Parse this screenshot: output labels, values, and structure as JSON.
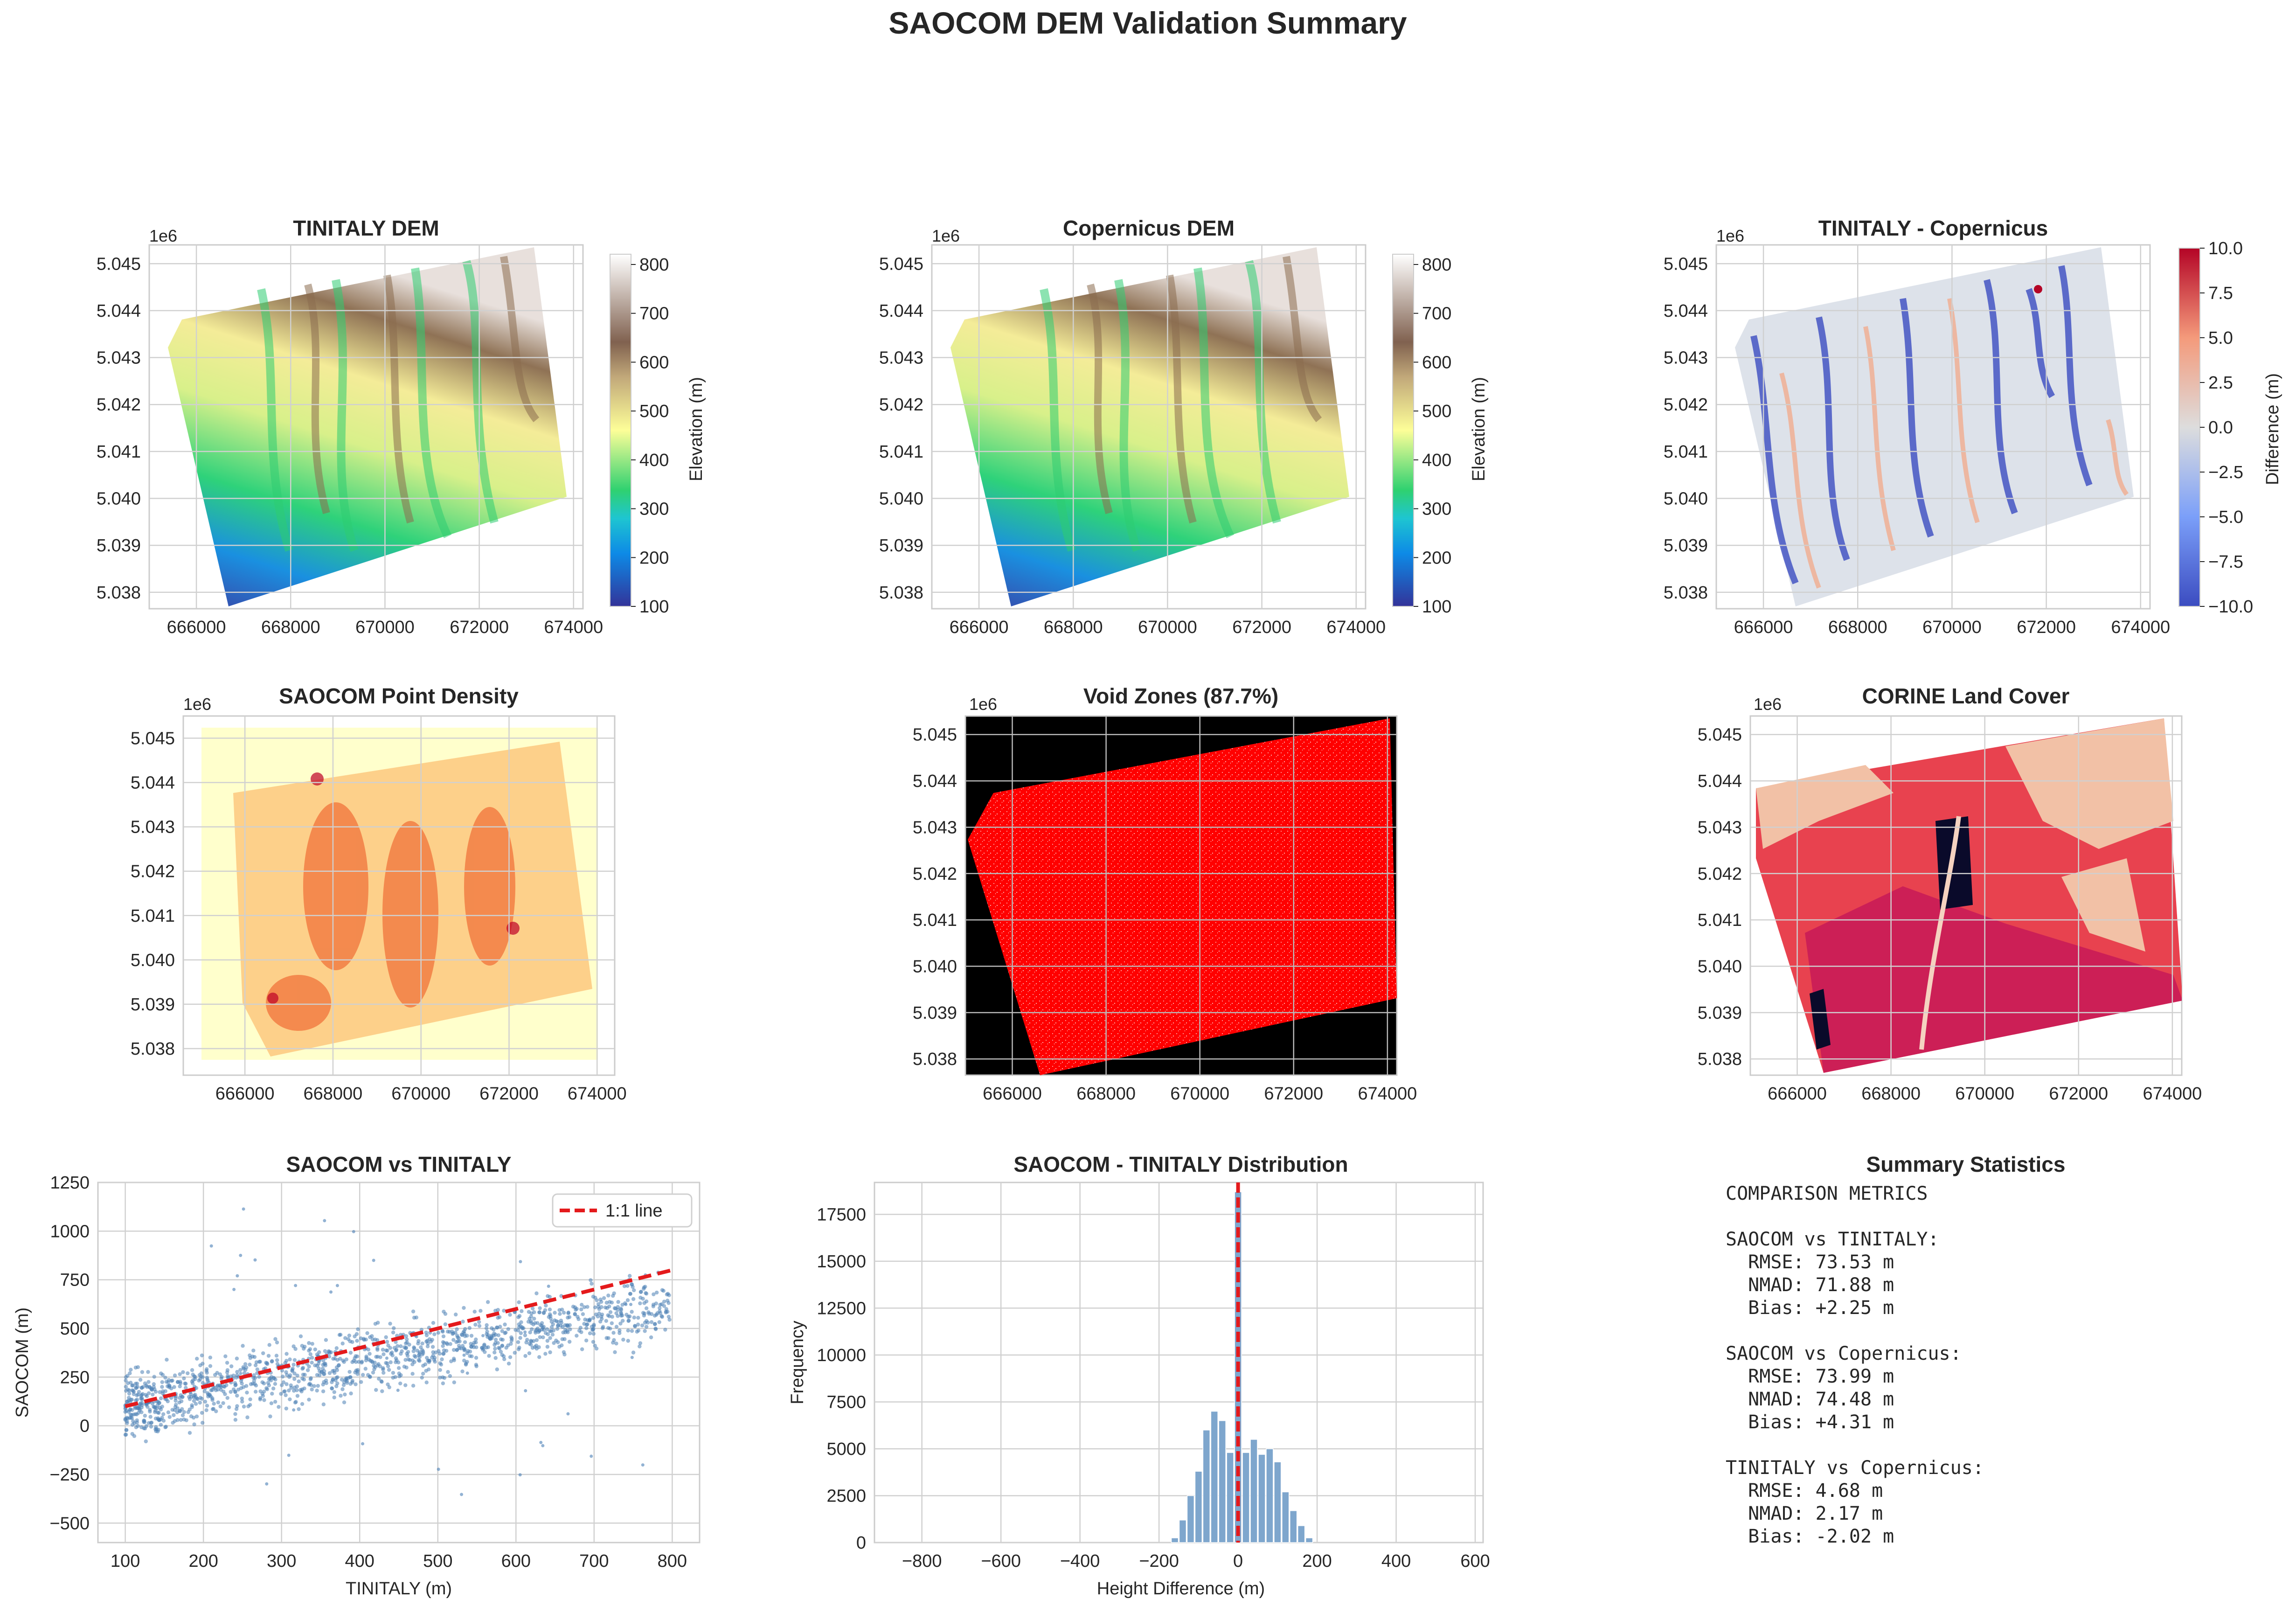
{
  "figure_title": "SAOCOM DEM Validation Summary",
  "common": {
    "offset_label": "1e6",
    "easting_ticks": [
      "666000",
      "668000",
      "670000",
      "672000",
      "674000"
    ],
    "northing_ticks": [
      "5.038",
      "5.039",
      "5.040",
      "5.041",
      "5.042",
      "5.043",
      "5.044",
      "5.045"
    ]
  },
  "colors": {
    "scatter_points": "#4a7fb5",
    "one_to_one_line": "#e41a1c",
    "hist_bars": "#7ea6cd",
    "void": "#ff0000",
    "void_background": "#000000",
    "grid": "#d0d0d0"
  },
  "panels": {
    "tinitaly_dem": {
      "title": "TINITALY DEM",
      "colorbar_label": "Elevation (m)",
      "colorbar_ticks": [
        "100",
        "200",
        "300",
        "400",
        "500",
        "600",
        "700",
        "800"
      ],
      "colormap": "terrain",
      "range": [
        100,
        820
      ]
    },
    "copernicus_dem": {
      "title": "Copernicus DEM",
      "colorbar_label": "Elevation (m)",
      "colorbar_ticks": [
        "100",
        "200",
        "300",
        "400",
        "500",
        "600",
        "700",
        "800"
      ],
      "colormap": "terrain",
      "range": [
        100,
        820
      ]
    },
    "difference": {
      "title": "TINITALY - Copernicus",
      "colorbar_label": "Difference (m)",
      "colorbar_ticks": [
        "−10.0",
        "−7.5",
        "−5.0",
        "−2.5",
        "0.0",
        "2.5",
        "5.0",
        "7.5",
        "10.0"
      ],
      "colormap": "coolwarm",
      "range": [
        -10,
        10
      ]
    },
    "density": {
      "title": "SAOCOM Point Density",
      "colormap": "YlOrRd"
    },
    "void": {
      "title": "Void Zones (87.7%)"
    },
    "corine": {
      "title": "CORINE Land Cover"
    },
    "scatter": {
      "title": "SAOCOM vs TINITALY",
      "xlabel": "TINITALY (m)",
      "ylabel": "SAOCOM (m)",
      "xticks": [
        "100",
        "200",
        "300",
        "400",
        "500",
        "600",
        "700",
        "800"
      ],
      "yticks": [
        "−500",
        "−250",
        "0",
        "250",
        "500",
        "750",
        "1000",
        "1250"
      ],
      "legend_label": "1:1 line"
    },
    "histogram": {
      "title": "SAOCOM - TINITALY Distribution",
      "xlabel": "Height Difference (m)",
      "ylabel": "Frequency",
      "xticks": [
        "−800",
        "−600",
        "−400",
        "−200",
        "0",
        "200",
        "400",
        "600"
      ],
      "yticks": [
        "0",
        "2500",
        "5000",
        "7500",
        "10000",
        "12500",
        "15000",
        "17500"
      ]
    },
    "summary": {
      "title": "Summary Statistics",
      "lines": [
        "COMPARISON METRICS",
        "",
        "SAOCOM vs TINITALY:",
        "  RMSE: 73.53 m",
        "  NMAD: 71.88 m",
        "  Bias: +2.25 m",
        "",
        "SAOCOM vs Copernicus:",
        "  RMSE: 73.99 m",
        "  NMAD: 74.48 m",
        "  Bias: +4.31 m",
        "",
        "TINITALY vs Copernicus:",
        "  RMSE: 4.68 m",
        "  NMAD: 2.17 m",
        "  Bias: -2.02 m"
      ]
    }
  },
  "chart_data": [
    {
      "type": "heatmap",
      "title": "TINITALY DEM",
      "xlim": [
        665000,
        674200
      ],
      "ylim": [
        5037650,
        5045400
      ],
      "colorbar": {
        "label": "Elevation (m)",
        "range": [
          100,
          820
        ]
      }
    },
    {
      "type": "heatmap",
      "title": "Copernicus DEM",
      "xlim": [
        665000,
        674200
      ],
      "ylim": [
        5037650,
        5045400
      ],
      "colorbar": {
        "label": "Elevation (m)",
        "range": [
          100,
          820
        ]
      }
    },
    {
      "type": "heatmap",
      "title": "TINITALY - Copernicus",
      "xlim": [
        665000,
        674200
      ],
      "ylim": [
        5037650,
        5045400
      ],
      "colorbar": {
        "label": "Difference (m)",
        "range": [
          -10,
          10
        ]
      }
    },
    {
      "type": "heatmap",
      "title": "SAOCOM Point Density",
      "xlim": [
        664600,
        674400
      ],
      "ylim": [
        5037400,
        5045500
      ]
    },
    {
      "type": "heatmap",
      "title": "Void Zones (87.7%)",
      "xlim": [
        665000,
        674200
      ],
      "ylim": [
        5037650,
        5045400
      ],
      "void_percent": 87.7
    },
    {
      "type": "heatmap",
      "title": "CORINE Land Cover",
      "xlim": [
        665000,
        674200
      ],
      "ylim": [
        5037650,
        5045400
      ]
    },
    {
      "type": "scatter",
      "title": "SAOCOM vs TINITALY",
      "xlabel": "TINITALY (m)",
      "ylabel": "SAOCOM (m)",
      "xlim": [
        65,
        835
      ],
      "ylim": [
        -600,
        1250
      ],
      "reference_line": {
        "name": "1:1 line",
        "x": [
          100,
          800
        ],
        "y": [
          100,
          800
        ]
      },
      "point_cloud_summary": {
        "x_range": [
          100,
          800
        ],
        "trend_slope": 0.75,
        "spread": 110
      }
    },
    {
      "type": "bar",
      "title": "SAOCOM - TINITALY Distribution",
      "xlabel": "Height Difference (m)",
      "ylabel": "Frequency",
      "xlim": [
        -920,
        620
      ],
      "ylim": [
        0,
        19200
      ],
      "bin_width": 20,
      "bins": [
        {
          "x": -160,
          "count": 250
        },
        {
          "x": -140,
          "count": 1200
        },
        {
          "x": -120,
          "count": 2500
        },
        {
          "x": -100,
          "count": 3800
        },
        {
          "x": -80,
          "count": 6000
        },
        {
          "x": -60,
          "count": 7000
        },
        {
          "x": -40,
          "count": 6500
        },
        {
          "x": -20,
          "count": 4800
        },
        {
          "x": 0,
          "count": 18700
        },
        {
          "x": 20,
          "count": 4800
        },
        {
          "x": 40,
          "count": 5500
        },
        {
          "x": 60,
          "count": 4700
        },
        {
          "x": 80,
          "count": 5000
        },
        {
          "x": 100,
          "count": 4300
        },
        {
          "x": 120,
          "count": 2700
        },
        {
          "x": 140,
          "count": 1700
        },
        {
          "x": 160,
          "count": 900
        },
        {
          "x": 180,
          "count": 250
        }
      ],
      "reference_line_x": 0
    }
  ]
}
